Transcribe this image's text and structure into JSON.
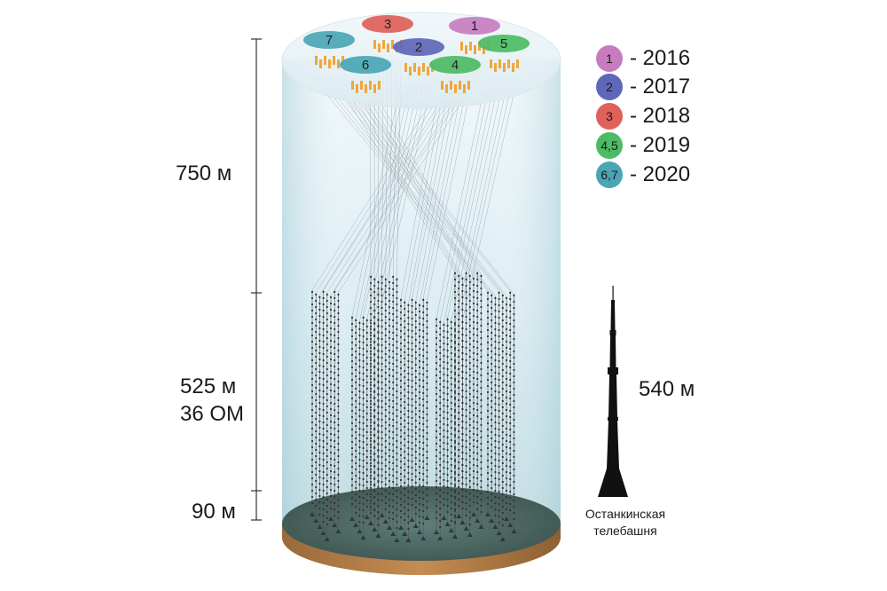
{
  "cluster_labels": [
    "1",
    "2",
    "3",
    "4",
    "5",
    "6",
    "7"
  ],
  "legend": [
    {
      "badge": "1",
      "year": "- 2016",
      "color": "#c77cc0"
    },
    {
      "badge": "2",
      "year": "- 2017",
      "color": "#5e67b8"
    },
    {
      "badge": "3",
      "year": "- 2018",
      "color": "#e0605a"
    },
    {
      "badge": "4,5",
      "year": "- 2019",
      "color": "#4dbb64"
    },
    {
      "badge": "6,7",
      "year": "- 2020",
      "color": "#4aa6b4"
    }
  ],
  "dimensions": {
    "top_height": "750 м",
    "instrumented_height": "525 м",
    "optical_modules": "36 ОМ",
    "bottom_gap": "90 м"
  },
  "tower": {
    "height": "540 м",
    "caption_line1": "Останкинская",
    "caption_line2": "телебашня"
  }
}
